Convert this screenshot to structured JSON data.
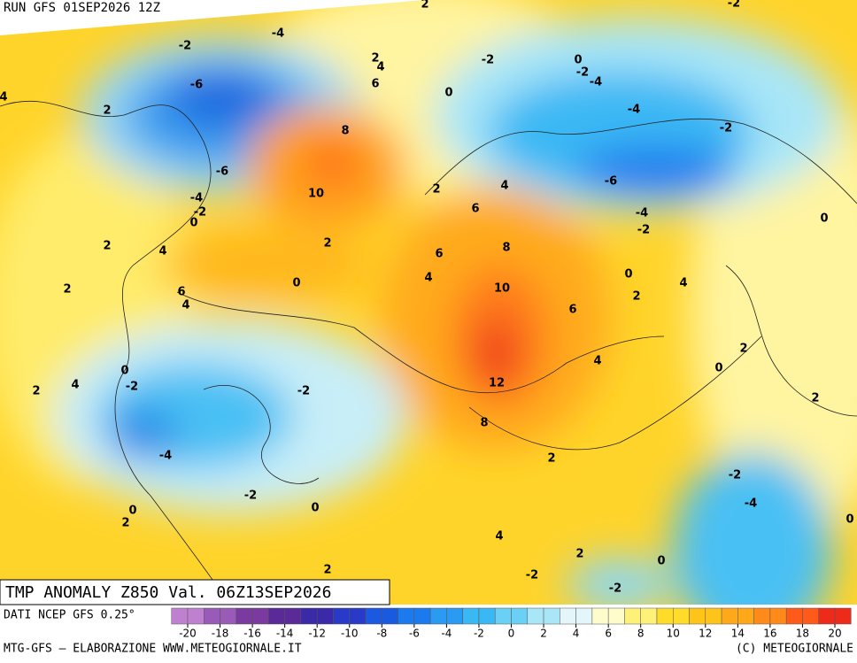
{
  "header": {
    "run": "RUN GFS 01SEP2026 12Z"
  },
  "map": {
    "title": "TMP ANOMALY Z850 Val. 06Z13SEP2026",
    "contour_labels": [
      -2,
      -4,
      2,
      -2,
      2,
      4,
      6,
      -6,
      4,
      2,
      8,
      -2,
      0,
      -2,
      -4,
      0,
      -4,
      -2,
      -6,
      10,
      2,
      4,
      -6,
      -4,
      -2,
      0,
      6,
      -4,
      -2,
      0,
      2,
      4,
      2,
      8,
      6,
      4,
      0,
      0,
      4,
      2,
      6,
      4,
      10,
      6,
      2,
      2,
      4,
      0,
      0,
      -2,
      2,
      4,
      -2,
      12,
      2,
      8,
      -4,
      2,
      -2,
      -4,
      -2,
      0,
      2,
      0,
      0,
      4,
      2,
      0,
      -2,
      2,
      -2
    ]
  },
  "colorbar": {
    "source": "DATI NCEP GFS 0.25°",
    "ticks": [
      -20,
      -18,
      -16,
      -14,
      -12,
      -10,
      -8,
      -6,
      -4,
      -2,
      0,
      2,
      4,
      6,
      8,
      10,
      12,
      14,
      16,
      18,
      20
    ],
    "colors": [
      "#c080d0",
      "#9a5ab8",
      "#7a3aa0",
      "#5a2a98",
      "#3a2aa8",
      "#2a3ac8",
      "#1a5ae0",
      "#1a7aee",
      "#2a9af2",
      "#3ab8f4",
      "#6ad0f6",
      "#a8e6f8",
      "#e4f6fa",
      "#fffccc",
      "#fff07a",
      "#ffdc2a",
      "#ffc41a",
      "#ffa81a",
      "#ff8a1a",
      "#ff5a1a",
      "#ee2a1a",
      "#c81a2a"
    ]
  },
  "footer": {
    "left": "MTG-GFS — ELABORAZIONE WWW.METEOGIORNALE.IT",
    "right": "(C) METEOGIORNALE"
  }
}
